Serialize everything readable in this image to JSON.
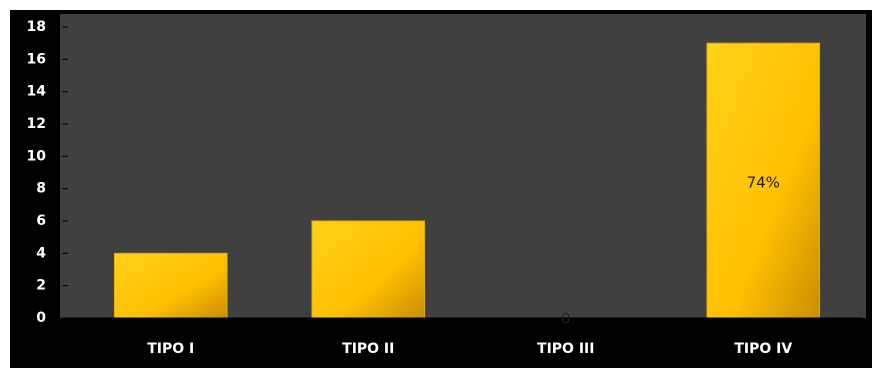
{
  "chart_data": {
    "type": "bar",
    "categories": [
      "TIPO I",
      "TIPO II",
      "TIPO III",
      "TIPO IV"
    ],
    "values": [
      4,
      6,
      0,
      17
    ],
    "color": "#ffc000",
    "ylim": [
      0,
      18
    ],
    "yticks": [
      0,
      2,
      4,
      6,
      8,
      10,
      12,
      14,
      16,
      18
    ],
    "annotations": [
      "74%"
    ]
  }
}
